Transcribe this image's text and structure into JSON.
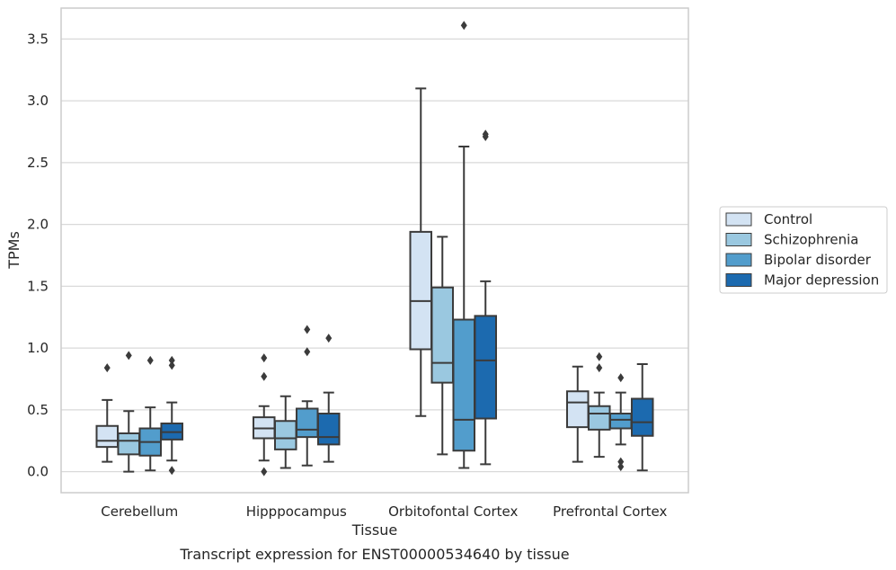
{
  "chart_data": {
    "type": "box",
    "caption": "Transcript expression for ENST00000534640 by tissue",
    "xlabel": "Tissue",
    "ylabel": "TPMs",
    "ylim": [
      -0.17,
      3.75
    ],
    "yticks": [
      "0.0",
      "0.5",
      "1.0",
      "1.5",
      "2.0",
      "2.5",
      "3.0",
      "3.5"
    ],
    "grid": true,
    "legend_position": "right",
    "categories": [
      "Cerebellum",
      "Hipppocampus",
      "Orbitofontal Cortex",
      "Prefrontal Cortex"
    ],
    "series": [
      {
        "name": "Control",
        "color": "#d3e3f3",
        "boxes": [
          {
            "whislo": 0.08,
            "q1": 0.2,
            "med": 0.25,
            "q3": 0.37,
            "whishi": 0.58,
            "fliers": [
              0.84
            ]
          },
          {
            "whislo": 0.09,
            "q1": 0.27,
            "med": 0.35,
            "q3": 0.44,
            "whishi": 0.53,
            "fliers": [
              0.0,
              0.77,
              0.92
            ]
          },
          {
            "whislo": 0.45,
            "q1": 0.99,
            "med": 1.38,
            "q3": 1.94,
            "whishi": 3.1,
            "fliers": []
          },
          {
            "whislo": 0.08,
            "q1": 0.36,
            "med": 0.56,
            "q3": 0.65,
            "whishi": 0.85,
            "fliers": []
          }
        ]
      },
      {
        "name": "Schizophrenia",
        "color": "#9ac8e0",
        "boxes": [
          {
            "whislo": 0.0,
            "q1": 0.14,
            "med": 0.25,
            "q3": 0.31,
            "whishi": 0.49,
            "fliers": [
              0.94
            ]
          },
          {
            "whislo": 0.03,
            "q1": 0.18,
            "med": 0.27,
            "q3": 0.41,
            "whishi": 0.61,
            "fliers": []
          },
          {
            "whislo": 0.14,
            "q1": 0.72,
            "med": 0.88,
            "q3": 1.49,
            "whishi": 1.9,
            "fliers": []
          },
          {
            "whislo": 0.12,
            "q1": 0.34,
            "med": 0.47,
            "q3": 0.53,
            "whishi": 0.64,
            "fliers": [
              0.84,
              0.93
            ]
          }
        ]
      },
      {
        "name": "Bipolar disorder",
        "color": "#529dcc",
        "boxes": [
          {
            "whislo": 0.01,
            "q1": 0.13,
            "med": 0.24,
            "q3": 0.35,
            "whishi": 0.52,
            "fliers": [
              0.9
            ]
          },
          {
            "whislo": 0.05,
            "q1": 0.28,
            "med": 0.34,
            "q3": 0.51,
            "whishi": 0.57,
            "fliers": [
              0.97,
              1.15
            ]
          },
          {
            "whislo": 0.03,
            "q1": 0.17,
            "med": 0.42,
            "q3": 1.23,
            "whishi": 2.63,
            "fliers": [
              3.61
            ]
          },
          {
            "whislo": 0.22,
            "q1": 0.35,
            "med": 0.42,
            "q3": 0.47,
            "whishi": 0.64,
            "fliers": [
              0.04,
              0.08,
              0.76
            ]
          }
        ]
      },
      {
        "name": "Major depression",
        "color": "#1c6aaf",
        "boxes": [
          {
            "whislo": 0.09,
            "q1": 0.26,
            "med": 0.32,
            "q3": 0.39,
            "whishi": 0.56,
            "fliers": [
              0.01,
              0.86,
              0.9
            ]
          },
          {
            "whislo": 0.08,
            "q1": 0.22,
            "med": 0.28,
            "q3": 0.47,
            "whishi": 0.64,
            "fliers": [
              1.08
            ]
          },
          {
            "whislo": 0.06,
            "q1": 0.43,
            "med": 0.9,
            "q3": 1.26,
            "whishi": 1.54,
            "fliers": [
              2.71,
              2.73
            ]
          },
          {
            "whislo": 0.01,
            "q1": 0.29,
            "med": 0.4,
            "q3": 0.59,
            "whishi": 0.87,
            "fliers": []
          }
        ]
      }
    ]
  }
}
